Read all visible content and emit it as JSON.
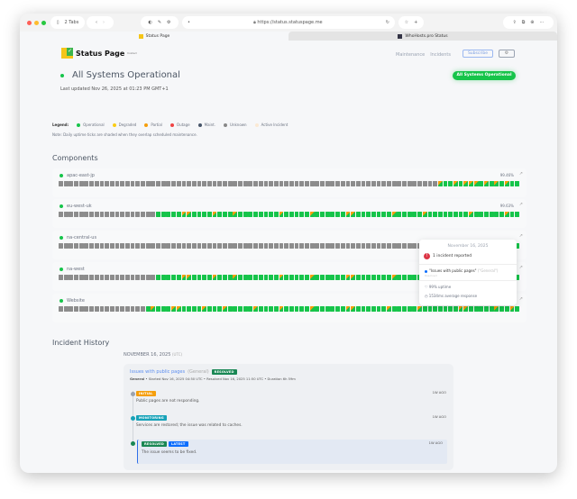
{
  "browser": {
    "tabs_count": "2 Tabs",
    "url": "https://status.statuspage.me",
    "tabs": [
      {
        "label": "Status Page",
        "active": true
      },
      {
        "label": "WhoHosts.pro Status",
        "active": false
      }
    ]
  },
  "header": {
    "logo_text": "Status Page",
    "logo_sup": "hosted",
    "nav": [
      "Maintenance",
      "Incidents"
    ],
    "subscribe": "Subscribe",
    "settings_icon": "gear-icon"
  },
  "status": {
    "title": "All Systems Operational",
    "last_updated": "Last updated Nov 26, 2025 at 01:23 PM GMT+1",
    "badge": "All Systems Operational",
    "color": "#16c44a"
  },
  "legend": {
    "label": "Legend:",
    "items": [
      {
        "label": "Operational",
        "color": "#16c44a"
      },
      {
        "label": "Degraded",
        "color": "#facc15"
      },
      {
        "label": "Partial",
        "color": "#f59e0b"
      },
      {
        "label": "Outage",
        "color": "#ef4444"
      },
      {
        "label": "Maint.",
        "color": "#475569"
      },
      {
        "label": "Unknown",
        "color": "#888888"
      },
      {
        "label": "Active Incident",
        "color": "#fbe9d4"
      }
    ],
    "note": "Note: Daily uptime ticks are shaded when they overlap scheduled maintenance."
  },
  "components": {
    "title": "Components",
    "items": [
      {
        "name": "apac-east-jp",
        "uptime": "99.46%",
        "days": "poopopppopopopoo"
      },
      {
        "name": "eu-west-uk",
        "uptime": "99.63%",
        "days": "oooooppoooopooopoooooooopooooopooooooppooooooopooooopoooooooopoooooopoo"
      },
      {
        "name": "na-central-us",
        "uptime": "",
        "days": "oooo"
      },
      {
        "name": "na-west",
        "uptime": "",
        "days": "oooooppoooopooopoooooooopooooopooooooppooooooopooooopoooooooopoooooopoo"
      },
      {
        "name": "Website",
        "uptime": "",
        "days": "opoooppoooopooopooooopoooopooooopooooooppoooooopooooopoooooooppooooopoopo"
      }
    ],
    "total_days": 90
  },
  "tooltip": {
    "date": "November 16, 2025",
    "count": "1 incident reported",
    "incident": "\"Issues with public pages\"",
    "group": "(\"General\")",
    "state": "Resolved",
    "uptime": "99% uptime",
    "response": "1534ms average response"
  },
  "history": {
    "title": "Incident History",
    "date": "NOVEMBER 16, 2025",
    "tz": "(UTC)",
    "incident": {
      "title": "Issues with public pages",
      "group": "(General)",
      "badge": "RESOLVED",
      "meta_group": "General",
      "meta": " • Started Nov 16, 2025 04:50 UTC • Resolved Nov 16, 2025 11:50 UTC • Duration 6h 59m",
      "updates": [
        {
          "badge": "INITIAL",
          "color": "#f59e0b",
          "dot": "#9ca3af",
          "text": "Public pages are not responding.",
          "ago": "1W AGO"
        },
        {
          "badge": "MONITORING",
          "color": "#17a2b8",
          "dot": "#17a2b8",
          "text": "Services are restored; the issue was related to caches.",
          "ago": "1W AGO"
        },
        {
          "badge": "RESOLVED",
          "latest": "LATEST",
          "color": "#198754",
          "dot": "#198754",
          "text": "The issue seems to be fixed.",
          "ago": "1W AGO"
        }
      ]
    }
  }
}
